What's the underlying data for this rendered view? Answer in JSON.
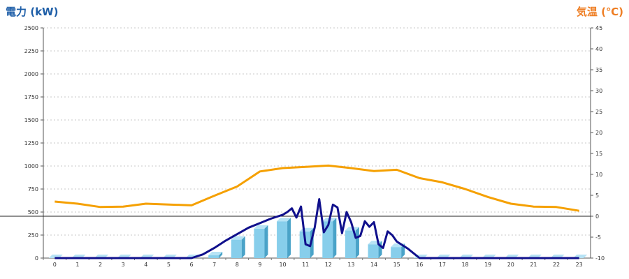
{
  "chart_data": {
    "type": "bar",
    "left_axis_title": "電力 (kW)",
    "right_axis_title": "気温 (℃)",
    "categories": [
      "0",
      "1",
      "2",
      "3",
      "4",
      "5",
      "6",
      "7",
      "8",
      "9",
      "10",
      "11",
      "12",
      "13",
      "14",
      "15",
      "16",
      "17",
      "18",
      "19",
      "20",
      "21",
      "22",
      "23"
    ],
    "y_left": {
      "range": [
        0,
        2500
      ],
      "ticks": [
        0,
        250,
        500,
        750,
        1000,
        1250,
        1500,
        1750,
        2000,
        2250,
        2500
      ]
    },
    "y_right": {
      "range": [
        -10,
        45
      ],
      "ticks": [
        -10,
        -5,
        0,
        5,
        10,
        15,
        20,
        25,
        30,
        35,
        40,
        45
      ]
    },
    "grid": true,
    "bars": {
      "axis": "left",
      "color": "#87ceeb",
      "values": [
        0,
        0,
        0,
        0,
        0,
        0,
        0,
        30,
        200,
        320,
        400,
        290,
        400,
        300,
        150,
        120,
        0,
        0,
        0,
        0,
        0,
        0,
        0,
        0
      ]
    },
    "power_line": {
      "axis": "left",
      "color": "#10108c",
      "x": [
        0,
        1,
        2,
        3,
        4,
        5,
        6,
        6.5,
        7,
        7.5,
        8,
        8.5,
        9,
        9.5,
        10,
        10.2,
        10.4,
        10.6,
        10.8,
        11,
        11.2,
        11.4,
        11.6,
        11.8,
        12,
        12.2,
        12.4,
        12.6,
        12.8,
        13,
        13.2,
        13.4,
        13.6,
        13.8,
        14,
        14.2,
        14.4,
        14.6,
        14.8,
        15,
        15.5,
        16,
        17,
        18,
        19,
        20,
        21,
        22,
        23
      ],
      "values": [
        0,
        0,
        0,
        0,
        0,
        0,
        0,
        40,
        110,
        190,
        260,
        330,
        380,
        430,
        470,
        500,
        540,
        440,
        560,
        150,
        130,
        330,
        640,
        280,
        360,
        580,
        550,
        270,
        500,
        390,
        220,
        240,
        400,
        340,
        390,
        150,
        110,
        290,
        250,
        180,
        100,
        0,
        0,
        0,
        0,
        0,
        0,
        0,
        0
      ]
    },
    "temperature_line": {
      "axis": "right",
      "color": "#f5a000",
      "x": [
        0,
        1,
        2,
        3,
        4,
        5,
        6,
        7,
        8,
        9,
        10,
        11,
        12,
        13,
        14,
        15,
        16,
        17,
        18,
        19,
        20,
        21,
        22,
        23
      ],
      "values": [
        3.5,
        3,
        2.2,
        2.3,
        3,
        2.8,
        2.6,
        4.9,
        7.1,
        10.7,
        11.5,
        11.8,
        12.1,
        11.5,
        10.8,
        11.1,
        9.1,
        8.1,
        6.5,
        4.6,
        3,
        2.3,
        2.2,
        1.3
      ]
    }
  }
}
